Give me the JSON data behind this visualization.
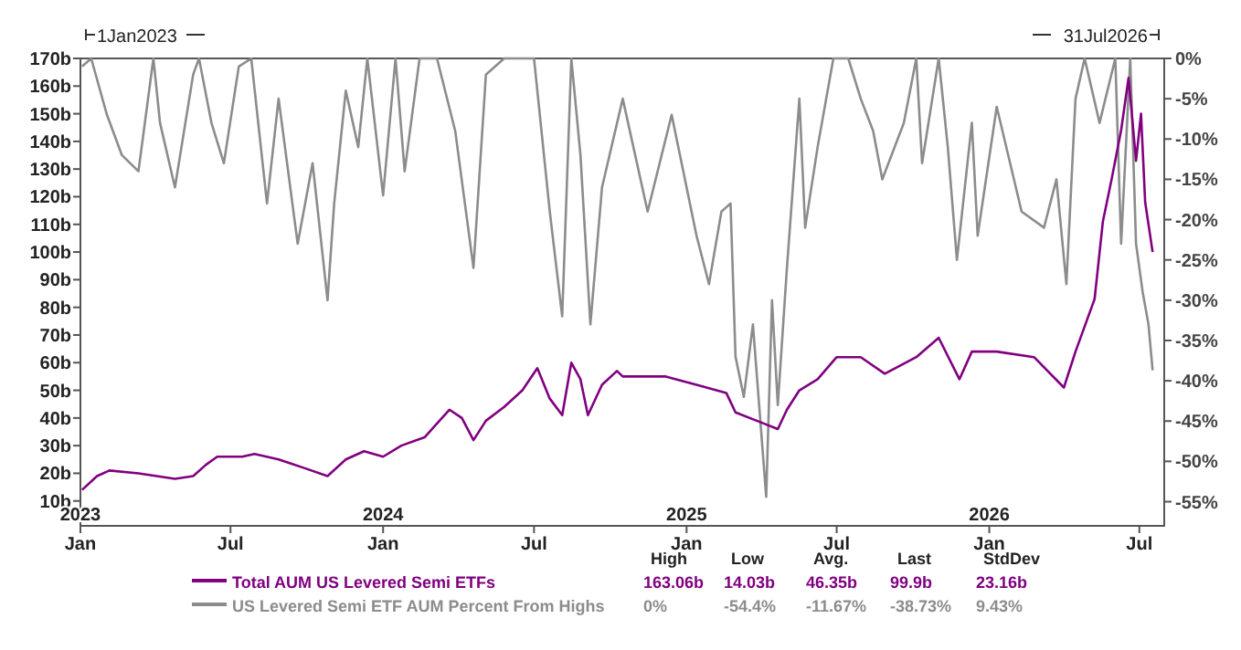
{
  "chart_data": {
    "type": "line",
    "legend": "bottom",
    "xlim": [
      "2023-01-01",
      "2026-07-31"
    ],
    "xticks": [
      {
        "value": "2023-01-01",
        "label": "Jan"
      },
      {
        "value": "2023-07-01",
        "label": "Jul"
      },
      {
        "value": "2024-01-01",
        "label": "Jan"
      },
      {
        "value": "2024-07-01",
        "label": "Jul"
      },
      {
        "value": "2025-01-01",
        "label": "Jan"
      },
      {
        "value": "2025-07-01",
        "label": "Jul"
      },
      {
        "value": "2026-01-01",
        "label": "Jan"
      },
      {
        "value": "2026-07-01",
        "label": "Jul"
      }
    ],
    "x2lim": [
      "2023-01-01",
      "2026-07-31"
    ],
    "x2ticks": [
      {
        "value": "2023-01-01",
        "label": "2023"
      },
      {
        "value": "2024-01-01",
        "label": "2024"
      },
      {
        "value": "2025-01-01",
        "label": "2025"
      },
      {
        "value": "2026-01-01",
        "label": "2026"
      }
    ],
    "ylim": [
      1,
      170
    ],
    "yticks": [
      {
        "value": 10,
        "label": "10b"
      },
      {
        "value": 20,
        "label": "20b"
      },
      {
        "value": 30,
        "label": "30b"
      },
      {
        "value": 40,
        "label": "40b"
      },
      {
        "value": 50,
        "label": "50b"
      },
      {
        "value": 60,
        "label": "60b"
      },
      {
        "value": 70,
        "label": "70b"
      },
      {
        "value": 80,
        "label": "80b"
      },
      {
        "value": 90,
        "label": "90b"
      },
      {
        "value": 100,
        "label": "100b"
      },
      {
        "value": 110,
        "label": "110b"
      },
      {
        "value": 120,
        "label": "120b"
      },
      {
        "value": 130,
        "label": "130b"
      },
      {
        "value": 140,
        "label": "140b"
      },
      {
        "value": 150,
        "label": "150b"
      },
      {
        "value": 160,
        "label": "160b"
      },
      {
        "value": 170,
        "label": "170b"
      }
    ],
    "y2lim": [
      -58,
      0
    ],
    "y2ticks": [
      {
        "value": 0,
        "label": "0%"
      },
      {
        "value": -5,
        "label": "-5%"
      },
      {
        "value": -10,
        "label": "-10%"
      },
      {
        "value": -15,
        "label": "-15%"
      },
      {
        "value": -20,
        "label": "-20%"
      },
      {
        "value": -25,
        "label": "-25%"
      },
      {
        "value": -30,
        "label": "-30%"
      },
      {
        "value": -35,
        "label": "-35%"
      },
      {
        "value": -40,
        "label": "-40%"
      },
      {
        "value": -45,
        "label": "-45%"
      },
      {
        "value": -50,
        "label": "-50%"
      },
      {
        "value": -55,
        "label": "-55%"
      }
    ],
    "series": [
      {
        "name": "US Levered Semi ETF AUM Percent From Highs",
        "color": "#8c8c8c",
        "axis": "y2",
        "x": [
          "2023-01-03",
          "2023-01-14",
          "2023-02-02",
          "2023-02-20",
          "2023-03-12",
          "2023-03-30",
          "2023-04-07",
          "2023-04-25",
          "2023-05-17",
          "2023-05-24",
          "2023-06-08",
          "2023-06-23",
          "2023-07-11",
          "2023-07-26",
          "2023-08-14",
          "2023-08-28",
          "2023-09-20",
          "2023-10-08",
          "2023-10-26",
          "2023-11-03",
          "2023-11-17",
          "2023-12-02",
          "2023-12-13",
          "2024-01-01",
          "2024-01-16",
          "2024-01-27",
          "2024-02-14",
          "2024-03-06",
          "2024-03-28",
          "2024-04-19",
          "2024-05-04",
          "2024-05-26",
          "2024-07-01",
          "2024-07-20",
          "2024-08-04",
          "2024-08-15",
          "2024-08-26",
          "2024-09-07",
          "2024-09-21",
          "2024-10-16",
          "2024-11-15",
          "2024-12-14",
          "2025-01-13",
          "2025-01-28",
          "2025-02-12",
          "2025-02-23",
          "2025-03-01",
          "2025-03-11",
          "2025-03-22",
          "2025-04-07",
          "2025-04-14",
          "2025-04-21",
          "2025-05-02",
          "2025-05-17",
          "2025-05-24",
          "2025-06-08",
          "2025-06-27",
          "2025-07-15",
          "2025-07-30",
          "2025-08-14",
          "2025-08-25",
          "2025-09-20",
          "2025-10-05",
          "2025-10-12",
          "2025-11-01",
          "2025-11-12",
          "2025-11-23",
          "2025-12-11",
          "2025-12-18",
          "2026-01-10",
          "2026-02-09",
          "2026-03-08",
          "2026-03-23",
          "2026-04-04",
          "2026-04-15",
          "2026-04-26",
          "2026-05-14",
          "2026-06-02",
          "2026-06-09",
          "2026-06-20",
          "2026-06-27",
          "2026-07-05",
          "2026-07-12",
          "2026-07-17"
        ],
        "values": [
          -1,
          0,
          -7,
          -12,
          -14,
          0,
          -8,
          -16,
          -2,
          0,
          -8,
          -13,
          -1,
          0,
          -18,
          -5,
          -23,
          -13,
          -30,
          -18,
          -4,
          -11,
          0,
          -17,
          0,
          -14,
          0,
          0,
          -9,
          -26,
          -2,
          0,
          0,
          -19,
          -32,
          0,
          -12,
          -33,
          -16,
          -5,
          -19,
          -7,
          -22,
          -28,
          -19,
          -18,
          -37,
          -42,
          -33,
          -54.4,
          -30,
          -43,
          -26,
          -5,
          -21,
          -11,
          0,
          0,
          -5,
          -9,
          -15,
          -8,
          0,
          -13,
          0,
          -11,
          -25,
          -8,
          -22,
          -6,
          -19,
          -21,
          -15,
          -28,
          -5,
          0,
          -8,
          0,
          -23,
          0,
          -23,
          -29,
          -33,
          -38.7
        ]
      },
      {
        "name": "Total AUM US Levered Semi ETFs",
        "color": "#800080",
        "x": [
          "2023-01-03",
          "2023-01-21",
          "2023-02-05",
          "2023-03-12",
          "2023-04-25",
          "2023-05-17",
          "2023-06-01",
          "2023-06-15",
          "2023-07-15",
          "2023-07-30",
          "2023-08-28",
          "2023-09-27",
          "2023-10-26",
          "2023-11-17",
          "2023-12-09",
          "2024-01-01",
          "2024-01-23",
          "2024-02-20",
          "2024-03-06",
          "2024-03-21",
          "2024-04-05",
          "2024-04-19",
          "2024-05-04",
          "2024-05-26",
          "2024-06-17",
          "2024-07-05",
          "2024-07-20",
          "2024-08-04",
          "2024-08-15",
          "2024-08-26",
          "2024-09-04",
          "2024-09-21",
          "2024-10-09",
          "2024-10-16",
          "2024-12-07",
          "2025-01-13",
          "2025-02-18",
          "2025-03-01",
          "2025-04-04",
          "2025-04-21",
          "2025-05-02",
          "2025-05-17",
          "2025-06-08",
          "2025-07-01",
          "2025-07-30",
          "2025-08-28",
          "2025-10-05",
          "2025-11-01",
          "2025-11-26",
          "2025-12-11",
          "2026-01-10",
          "2026-02-24",
          "2026-04-01",
          "2026-04-15",
          "2026-05-08",
          "2026-05-18",
          "2026-05-29",
          "2026-06-09",
          "2026-06-18",
          "2026-06-27",
          "2026-07-03",
          "2026-07-08",
          "2026-07-17"
        ],
        "values": [
          14,
          19,
          21,
          20,
          18,
          19,
          23,
          26,
          26,
          27,
          25,
          22,
          19,
          25,
          28,
          26,
          30,
          33,
          38,
          43,
          40,
          32,
          39,
          44,
          50,
          58,
          47,
          41,
          60,
          54,
          41,
          52,
          57,
          55,
          55,
          52,
          49,
          42,
          38,
          36,
          43,
          50,
          54,
          62,
          62,
          56,
          62,
          69,
          54,
          64,
          64,
          62,
          51,
          64,
          83,
          111,
          127,
          144,
          163,
          133,
          150,
          118,
          100
        ]
      }
    ],
    "annotations": [
      "1Jan2023",
      "31Jul2026",
      "High",
      "Low",
      "Avg.",
      "Last",
      "StdDev",
      "163.06b",
      "14.03b",
      "46.35b",
      "99.9b",
      "23.16b",
      "0%",
      "-54.4%",
      "-11.67%",
      "-38.73%",
      "9.43%"
    ]
  }
}
